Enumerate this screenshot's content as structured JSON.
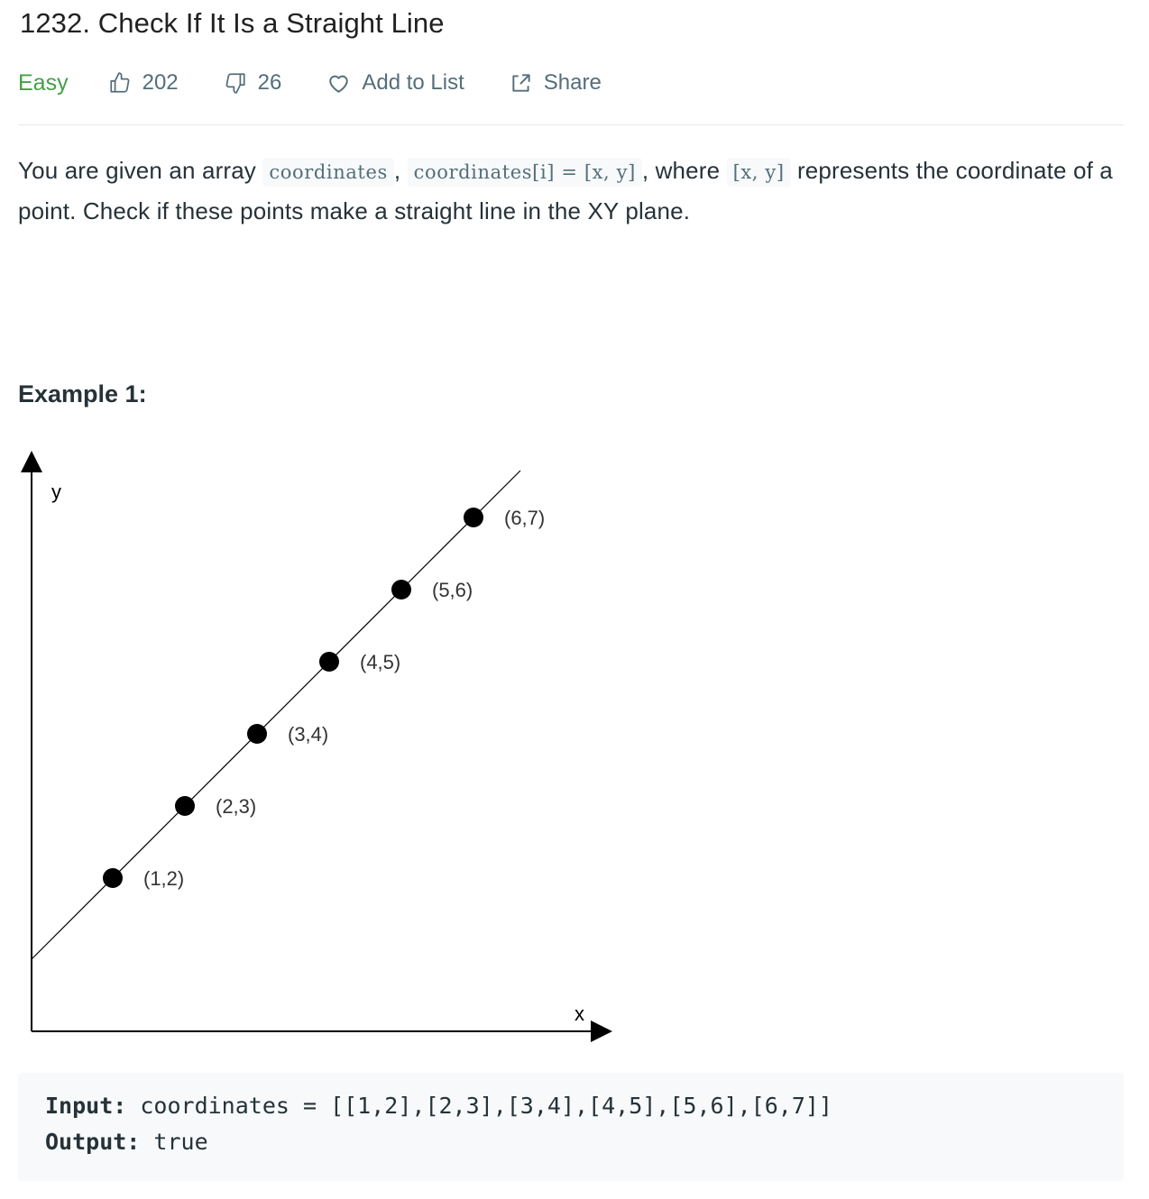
{
  "problem": {
    "title": "1232. Check If It Is a Straight Line",
    "difficulty": "Easy",
    "likes": "202",
    "dislikes": "26",
    "add_to_list_label": "Add to List",
    "share_label": "Share",
    "difficulty_color": "#43a047"
  },
  "description": {
    "part1": "You are given an array ",
    "code1": "coordinates",
    "sep1": ", ",
    "code2": "coordinates[i] = [x, y]",
    "part2": ", where ",
    "code3": "[x, y]",
    "part3": " represents the coordinate of a point. Check if these points make a straight line in the XY plane."
  },
  "example": {
    "title": "Example 1:",
    "input_label": "Input:",
    "input_value": " coordinates = [[1,2],[2,3],[3,4],[4,5],[5,6],[6,7]]",
    "output_label": "Output:",
    "output_value": " true"
  },
  "chart_data": {
    "type": "scatter",
    "xlabel": "x",
    "ylabel": "y",
    "points": [
      {
        "x": 1,
        "y": 2,
        "label": "(1,2)"
      },
      {
        "x": 2,
        "y": 3,
        "label": "(2,3)"
      },
      {
        "x": 3,
        "y": 4,
        "label": "(3,4)"
      },
      {
        "x": 4,
        "y": 5,
        "label": "(4,5)"
      },
      {
        "x": 5,
        "y": 6,
        "label": "(5,6)"
      },
      {
        "x": 6,
        "y": 7,
        "label": "(6,7)"
      }
    ],
    "line": {
      "slope": 1,
      "intercept": 1
    },
    "grid": false
  }
}
